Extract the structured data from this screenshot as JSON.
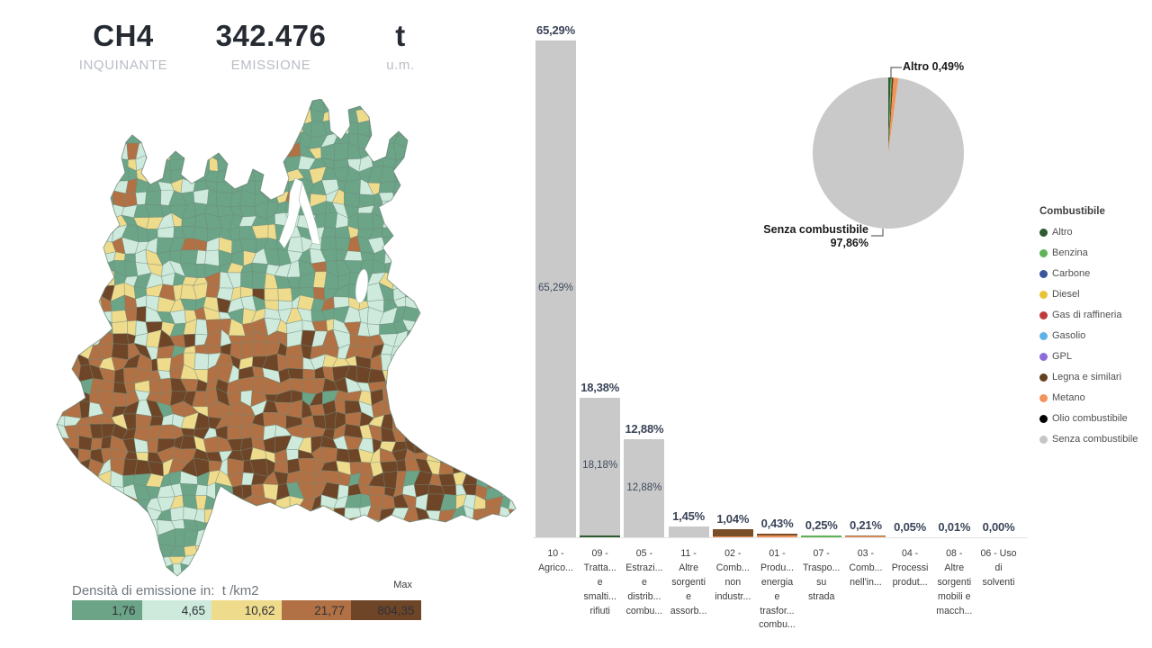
{
  "header": {
    "pollutant_value": "CH4",
    "pollutant_label": "INQUINANTE",
    "emission_value": "342.476",
    "emission_label": "EMISSIONE",
    "unit_value": "t",
    "unit_label": "u.m."
  },
  "map_legend": {
    "title": "Densità di emissione in:",
    "unit": "t /km2",
    "max_label": "Max",
    "classes": [
      {
        "label": "1,76",
        "color": "#6BA487"
      },
      {
        "label": "4,65",
        "color": "#CDEADC"
      },
      {
        "label": "10,62",
        "color": "#EFDB8C"
      },
      {
        "label": "21,77",
        "color": "#B17144"
      },
      {
        "label": "804,35",
        "color": "#6E4527"
      }
    ]
  },
  "chart_data": [
    {
      "type": "bar",
      "title": "",
      "unit": "%",
      "grid": false,
      "ylim": [
        0,
        70
      ],
      "categories": [
        "10 -\nAgrico...",
        "09 -\nTratta...\ne\nsmalti...\nrifiuti",
        "05 -\nEstrazi...\ne\ndistrib...\ncombu...",
        "11 -\nAltre\nsorgenti\ne\nassorb...",
        "02 -\nComb...\nnon\nindustr...",
        "01 -\nProdu...\nenergia\ne\ntrasfor...\ncombu...",
        "07 -\nTraspo...\nsu\nstrada",
        "03 -\nComb...\nnell'in...",
        "04 -\nProcessi\nprodut...",
        "08 -\nAltre\nsorgenti\nmobili e\nmacch...",
        "06 - Uso\ndi\nsolventi"
      ],
      "values": [
        65.29,
        18.38,
        12.88,
        1.45,
        1.04,
        0.43,
        0.25,
        0.21,
        0.05,
        0.01,
        0.0
      ],
      "value_labels": [
        "65,29%",
        "18,38%",
        "12,88%",
        "1,45%",
        "1,04%",
        "0,43%",
        "0,25%",
        "0,21%",
        "0,05%",
        "0,01%",
        "0,00%"
      ],
      "inner_labels": [
        "65,29%",
        "18,18%",
        "12,88%",
        "",
        "",
        "",
        "",
        "",
        "",
        "",
        ""
      ],
      "segments": [
        [
          {
            "fuel": "Senza combustibile",
            "value": 65.29,
            "color": "#C9C9C9"
          }
        ],
        [
          {
            "fuel": "Altro",
            "value": 0.2,
            "color": "#2E5B31"
          },
          {
            "fuel": "Senza combustibile",
            "value": 18.18,
            "color": "#C9C9C9"
          }
        ],
        [
          {
            "fuel": "Senza combustibile",
            "value": 12.88,
            "color": "#C9C9C9"
          }
        ],
        [
          {
            "fuel": "Senza combustibile",
            "value": 1.45,
            "color": "#C9C9C9"
          }
        ],
        [
          {
            "fuel": "Metano",
            "value": 0.08,
            "color": "#F0945C"
          },
          {
            "fuel": "Legna e similari",
            "value": 0.96,
            "color": "#7A4E26"
          }
        ],
        [
          {
            "fuel": "Metano",
            "value": 0.22,
            "color": "#F0945C"
          },
          {
            "fuel": "Legna e similari",
            "value": 0.21,
            "color": "#7A4E26"
          }
        ],
        [
          {
            "fuel": "Benzina",
            "value": 0.25,
            "color": "#5FB357"
          }
        ],
        [
          {
            "fuel": "Metano",
            "value": 0.11,
            "color": "#F0945C"
          },
          {
            "fuel": "Legna e similari",
            "value": 0.1,
            "color": "#9A7B4F"
          }
        ],
        [
          {
            "fuel": "Senza combustibile",
            "value": 0.05,
            "color": "#C9C9C9"
          }
        ],
        [
          {
            "fuel": "Senza combustibile",
            "value": 0.01,
            "color": "#C9C9C9"
          }
        ],
        []
      ]
    },
    {
      "type": "pie",
      "slices": [
        {
          "label": "Altro",
          "value": 0.49,
          "color": "#2E5B31"
        },
        {
          "label": "Benzina",
          "value": 0.25,
          "color": "#5FB357"
        },
        {
          "label": "Legna e similari",
          "value": 0.36,
          "color": "#63411F"
        },
        {
          "label": "Metano",
          "value": 1.04,
          "color": "#F0945C"
        },
        {
          "label": "Senza combustibile",
          "value": 97.86,
          "color": "#C9C9C9"
        }
      ],
      "callout_labels": {
        "altro": "Altro 0,49%",
        "senza_line1": "Senza combustibile",
        "senza_line2": "97,86%"
      }
    }
  ],
  "fuel_legend": {
    "title": "Combustibile",
    "items": [
      {
        "label": "Altro",
        "color": "#2E5B31"
      },
      {
        "label": "Benzina",
        "color": "#5FB357"
      },
      {
        "label": "Carbone",
        "color": "#3A549E"
      },
      {
        "label": "Diesel",
        "color": "#E8C33A"
      },
      {
        "label": "Gas di raffineria",
        "color": "#C03A3A"
      },
      {
        "label": "Gasolio",
        "color": "#5FB3E6"
      },
      {
        "label": "GPL",
        "color": "#8E6BDB"
      },
      {
        "label": "Legna e similari",
        "color": "#63411F"
      },
      {
        "label": "Metano",
        "color": "#F0945C"
      },
      {
        "label": "Olio combustibile",
        "color": "#000000"
      },
      {
        "label": "Senza combustibile",
        "color": "#C6C6C6"
      }
    ]
  }
}
